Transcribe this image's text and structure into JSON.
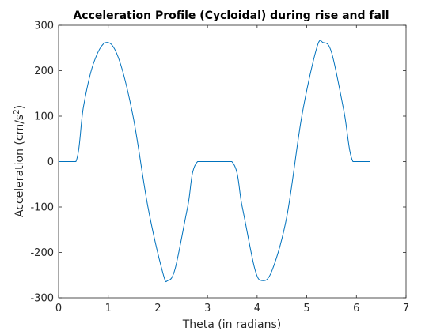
{
  "chart_data": {
    "type": "line",
    "title": "Acceleration Profile (Cycloidal) during rise and fall",
    "xlabel": "Theta (in radians)",
    "ylabel_base": "Acceleration (cm/s",
    "ylabel_sup": "2",
    "ylabel_close": ")",
    "xlim": [
      0,
      7
    ],
    "ylim": [
      -300,
      300
    ],
    "xticks": [
      0,
      1,
      2,
      3,
      4,
      5,
      6,
      7
    ],
    "yticks": [
      -300,
      -200,
      -100,
      0,
      100,
      200,
      300
    ],
    "grid": false,
    "line_color": "#0072bd",
    "series": [
      {
        "x": [
          0,
          0.349,
          0.5,
          0.7,
          0.95,
          1.2,
          1.5,
          1.8,
          2.1,
          2.2,
          2.35,
          2.6,
          2.8,
          3.49,
          3.7,
          3.95,
          4.1,
          4.3,
          4.6,
          4.9,
          5.2,
          5.33,
          5.5,
          5.75,
          5.93,
          6.28
        ],
        "y": [
          0,
          0,
          120,
          215,
          262,
          230,
          100,
          -100,
          -245,
          -262,
          -235,
          -100,
          0,
          0,
          -100,
          -235,
          -262,
          -240,
          -120,
          100,
          250,
          262,
          240,
          110,
          0,
          0
        ]
      }
    ]
  }
}
